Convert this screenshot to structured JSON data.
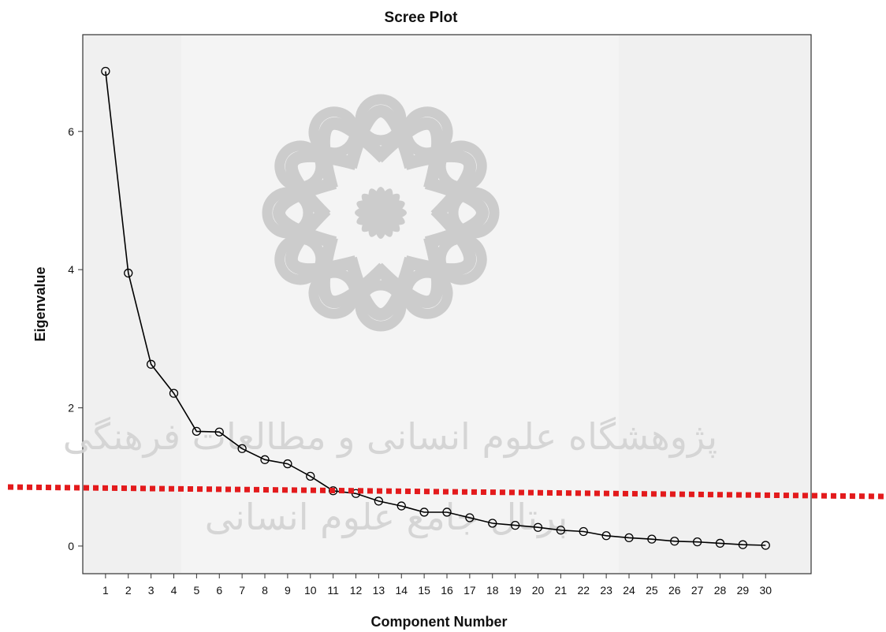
{
  "chart_data": {
    "type": "line",
    "title": "Scree Plot",
    "xlabel": "Component Number",
    "ylabel": "Eigenvalue",
    "x": [
      1,
      2,
      3,
      4,
      5,
      6,
      7,
      8,
      9,
      10,
      11,
      12,
      13,
      14,
      15,
      16,
      17,
      18,
      19,
      20,
      21,
      22,
      23,
      24,
      25,
      26,
      27,
      28,
      29,
      30
    ],
    "values": [
      6.87,
      3.95,
      2.63,
      2.21,
      1.66,
      1.65,
      1.41,
      1.25,
      1.19,
      1.01,
      0.8,
      0.76,
      0.65,
      0.58,
      0.49,
      0.49,
      0.41,
      0.33,
      0.3,
      0.27,
      0.23,
      0.21,
      0.15,
      0.12,
      0.1,
      0.07,
      0.06,
      0.04,
      0.02,
      0.01
    ],
    "yticks": [
      0,
      2,
      4,
      6
    ],
    "ylim": [
      -0.4,
      7.4
    ],
    "xlim": [
      0,
      32
    ],
    "grid": false,
    "marker": "open-circle",
    "cutoff_line": {
      "color": "#e31a1c",
      "style": "dotted"
    },
    "colors": {
      "line": "#000000",
      "plot_background": "#f0f0f0",
      "cutoff": "#e31a1c"
    }
  },
  "watermark": {
    "line1": "پژوهشگاه علوم انسانی و مطالعات فرهنگی",
    "line2": "پرتال جامع علوم انسانی",
    "emblem": "rosette-emblem"
  }
}
